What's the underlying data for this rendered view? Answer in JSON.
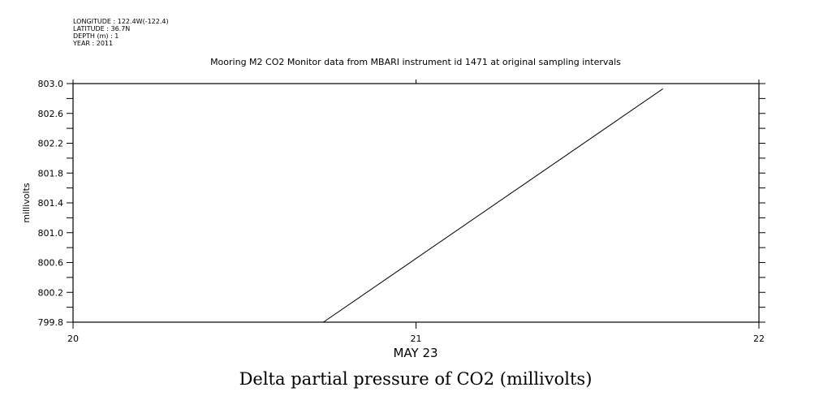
{
  "header": {
    "longitude": "LONGITUDE : 122.4W(-122.4)",
    "latitude": "LATITUDE : 36.7N",
    "depth": "DEPTH (m) : 1",
    "year": "YEAR : 2011"
  },
  "chart_data": {
    "type": "line",
    "title": "Mooring M2 CO2 Monitor data from MBARI instrument id 1471 at original sampling intervals",
    "xlabel": "MAY 23",
    "ylabel": "millivolts",
    "caption": "Delta partial pressure of CO2 (millivolts)",
    "xlim": [
      20,
      22
    ],
    "ylim": [
      799.8,
      803.0
    ],
    "x_ticks": [
      "20",
      "21",
      "22"
    ],
    "x_tick_values": [
      20,
      21,
      22
    ],
    "y_ticks": [
      "799.8",
      "800.2",
      "800.6",
      "801.0",
      "801.4",
      "801.8",
      "802.2",
      "802.6",
      "803.0"
    ],
    "y_tick_values": [
      799.8,
      800.2,
      800.6,
      801.0,
      801.4,
      801.8,
      802.2,
      802.6,
      803.0
    ],
    "grid": false,
    "series": [
      {
        "name": "Delta partial pressure of CO2",
        "x": [
          20.73,
          21.72
        ],
        "y": [
          799.8,
          802.93
        ]
      }
    ]
  }
}
